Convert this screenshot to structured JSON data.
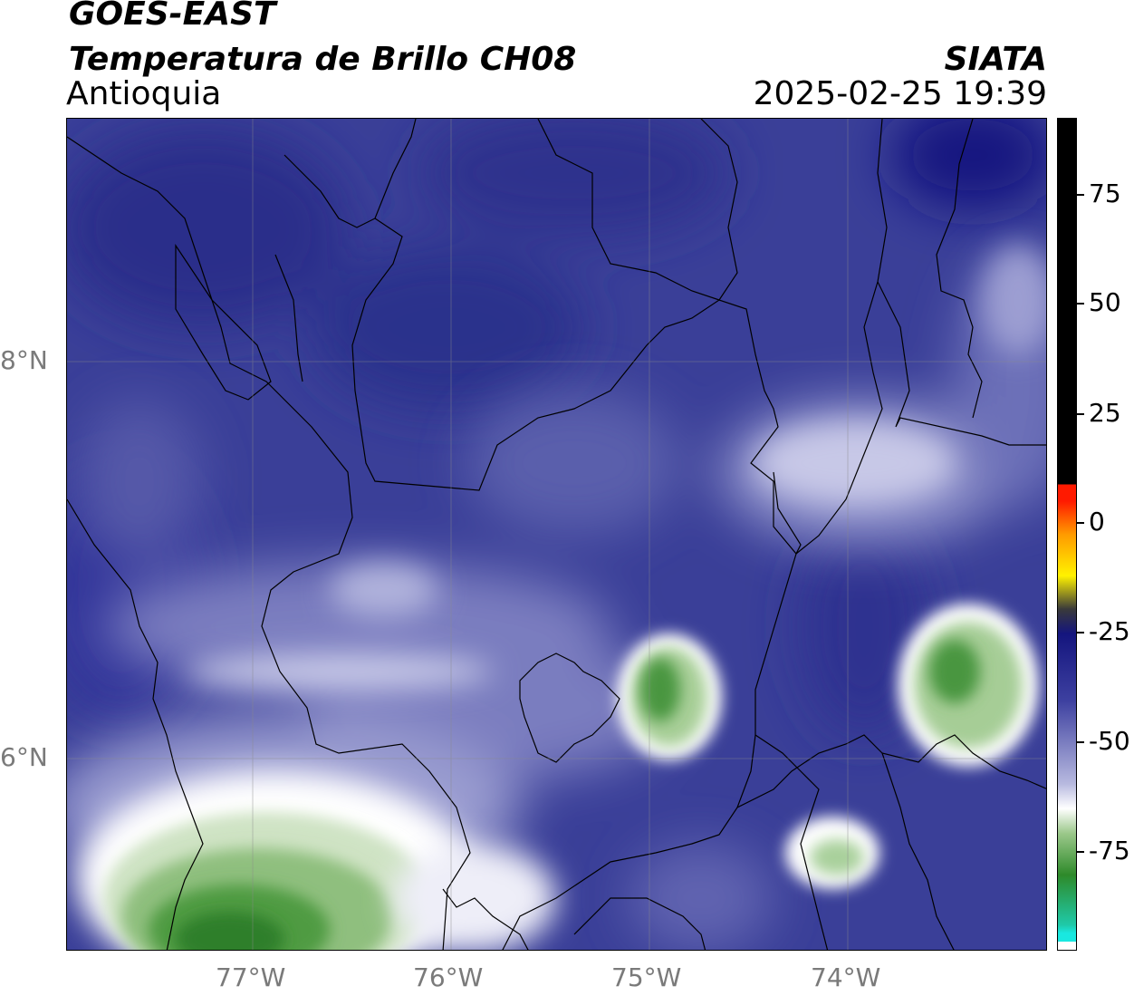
{
  "header": {
    "satellite": "GOES-EAST",
    "product": "Temperatura de Brillo CH08",
    "region": "Antioquia",
    "agency": "SIATA",
    "datetime": "2025-02-25 19:39"
  },
  "map": {
    "lat_labels": [
      "8°N",
      "6°N"
    ],
    "lon_labels": [
      "77°W",
      "76°W",
      "75°W",
      "74°W"
    ],
    "background_color": "#3a3f98"
  },
  "colorbar": {
    "tick_labels": [
      "75",
      "50",
      "25",
      "0",
      "-25",
      "-50",
      "-75"
    ],
    "colors": {
      "black": "#000000",
      "red": "#ff1a00",
      "orange": "#ff9a00",
      "yellow": "#fff200",
      "dark_blue": "#14157e",
      "blue": "#3d40a0",
      "lavender": "#b7b9df",
      "white": "#ffffff",
      "light_green": "#9bc88a",
      "green": "#2e8a2a",
      "teal": "#1fc9a8",
      "cyan": "#19e8e0"
    }
  }
}
